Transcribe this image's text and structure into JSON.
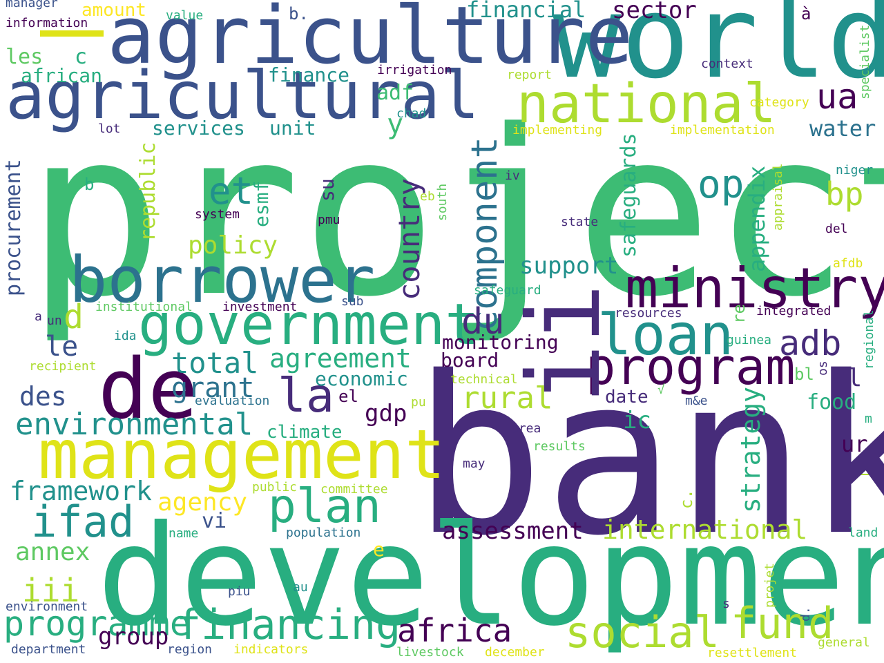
{
  "palette": {
    "c1": "#440154",
    "c2": "#472c7a",
    "c3": "#3b528b",
    "c4": "#2c728e",
    "c5": "#21918c",
    "c6": "#28ae80",
    "c7": "#5ec962",
    "c8": "#addc30",
    "c9": "#fde725",
    "c10": "#3dbc74",
    "c11": "#dfe318"
  },
  "words": [
    "project",
    "bank",
    "development",
    "world",
    "agriculture",
    "agricultural",
    "de",
    "management",
    "borrower",
    "government",
    "ministry",
    "national",
    "loan",
    "program",
    "ii",
    "financing",
    "plan",
    "la",
    "ifad",
    "social",
    "fund",
    "africa",
    "component",
    "programme",
    "environmental",
    "country",
    "du",
    "adb",
    "et",
    "op",
    "ua",
    "bp",
    "d",
    "total",
    "grant",
    "rural",
    "agreement",
    "international",
    "assessment",
    "framework",
    "agency",
    "policy",
    "support",
    "strategy",
    "safeguards",
    "appendix",
    "annex",
    "iii",
    "des",
    "le",
    "group",
    "y",
    "procurement",
    "republic",
    "esmf",
    "su",
    "services",
    "unit",
    "finance",
    "financial",
    "sector",
    "adf",
    "economic",
    "monitoring",
    "board",
    "gdp",
    "el",
    "climate",
    "date",
    "ic",
    "cl",
    "water",
    "food",
    "ur",
    "c",
    "les",
    "african",
    "amount",
    "b.",
    "b",
    "e",
    "vi",
    "c.",
    "re",
    "bl",
    "manager",
    "information",
    "value",
    "à",
    "irrigation",
    "report",
    "context",
    "category",
    "specialist",
    "chad",
    "lot",
    "implementing",
    "implementation",
    "niger",
    "appraisal",
    "iv",
    "eb",
    "south",
    "system",
    "pmu",
    "state",
    "del",
    "afdb",
    "safeguard",
    "sub",
    "institutional",
    "investment",
    "resources",
    "integrated",
    "a",
    "un",
    "ida",
    "guinea",
    "regional",
    "recipient",
    "technical",
    "os",
    "evaluation",
    "m&e",
    "pu",
    "m",
    "area",
    "results",
    "may",
    "public",
    "committee",
    "name",
    "population",
    "land",
    "√",
    "projet",
    "piu",
    "au",
    "environment",
    "s",
    "d.",
    "department",
    "region",
    "indicators",
    "livestock",
    "december",
    "resettlement",
    "general"
  ]
}
